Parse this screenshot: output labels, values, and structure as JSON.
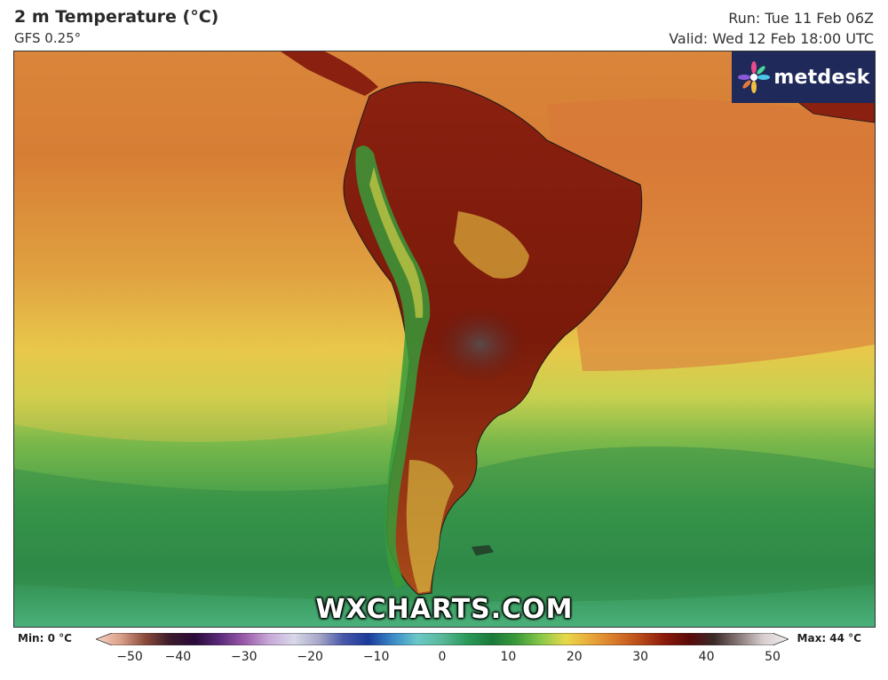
{
  "header": {
    "title": "2 m Temperature (°C)",
    "model": "GFS 0.25°",
    "run": "Run: Tue 11 Feb 06Z",
    "valid": "Valid: Wed 12 Feb 18:00 UTC"
  },
  "brand": {
    "logo_text": "metdesk",
    "watermark": "WXCHARTS.COM"
  },
  "legend": {
    "min_label": "Min: 0 °C",
    "max_label": "Max: 44 °C",
    "ticks": [
      "−50",
      "−40",
      "−30",
      "−20",
      "−10",
      "0",
      "10",
      "20",
      "30",
      "40",
      "50"
    ],
    "range": [
      -50,
      50
    ],
    "colors": [
      "#f7d2c2",
      "#d9a08a",
      "#8a4a3a",
      "#3a1a2a",
      "#2a0a3a",
      "#5a2a7a",
      "#9a5aaa",
      "#c8a8d8",
      "#d8d8e8",
      "#a8a8c8",
      "#4858a8",
      "#1a3a9a",
      "#3a8ac8",
      "#6ac8c8",
      "#5ab89a",
      "#2a9a5a",
      "#1a7a3a",
      "#3a9a3a",
      "#8ac84a",
      "#e8d84a",
      "#e8a83a",
      "#d8782a",
      "#b84a1a",
      "#8a1a0a",
      "#5a0a0a",
      "#3a2a2a",
      "#8a7a7a",
      "#d8d0d0",
      "#f0ecec"
    ]
  },
  "map": {
    "region": "South America",
    "colors": {
      "ocean_north": "#d9853a",
      "ocean_mid": "#e8c04a",
      "ocean_south": "#3c9a4a",
      "ocean_far_south": "#4ab07a",
      "land_hot": "#7a1a0a",
      "land_very_hot": "#5a3a3a",
      "andes": "#3a9a3a"
    }
  }
}
